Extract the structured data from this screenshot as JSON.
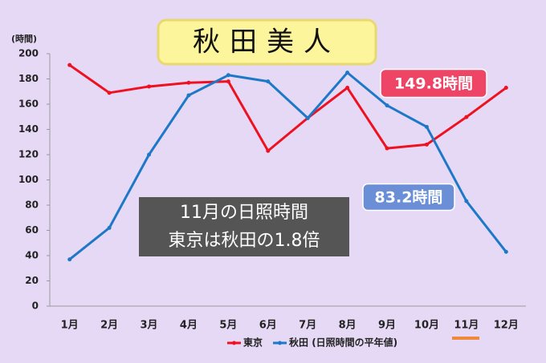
{
  "chart_data": {
    "type": "line",
    "title": "秋田美人",
    "y_label": "(時間)",
    "categories": [
      "1月",
      "2月",
      "3月",
      "4月",
      "5月",
      "6月",
      "7月",
      "8月",
      "9月",
      "10月",
      "11月",
      "12月"
    ],
    "series": [
      {
        "name": "東京",
        "color": "#ee1122",
        "values": [
          191,
          169,
          174,
          177,
          178,
          123,
          149,
          173,
          125,
          128,
          149.8,
          173
        ],
        "value_labels": [
          null,
          null,
          null,
          null,
          null,
          null,
          null,
          null,
          null,
          null,
          "149.8時間",
          null
        ],
        "label_color": "#ee4466"
      },
      {
        "name": "秋田 (日照時間の平年値)",
        "color": "#1e78c8",
        "values": [
          37,
          62,
          120,
          167,
          183,
          178,
          149,
          185,
          159,
          142,
          83.2,
          43
        ],
        "value_labels": [
          null,
          null,
          null,
          null,
          null,
          null,
          null,
          null,
          null,
          null,
          "83.2時間",
          null
        ],
        "label_color": "#6a8fd6"
      }
    ],
    "note": [
      "11月の日照時間",
      "東京は秋田の1.8倍"
    ],
    "ylim": [
      0,
      200
    ],
    "yticks": [
      0,
      20,
      40,
      60,
      80,
      100,
      120,
      140,
      160,
      180,
      200
    ],
    "grid": false
  }
}
